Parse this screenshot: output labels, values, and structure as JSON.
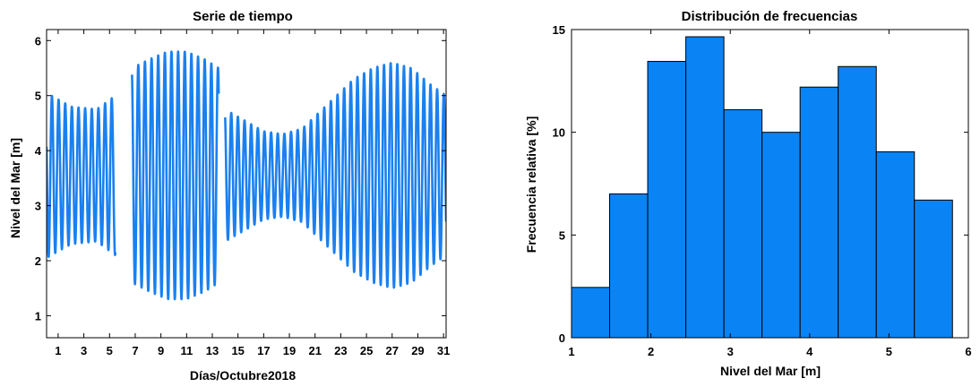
{
  "chart_data": [
    {
      "type": "line",
      "title": "Serie de tiempo",
      "xlabel": "Días/Octubre2018",
      "ylabel": "Nivel del Mar [m]",
      "xlim": [
        0.1,
        31.2
      ],
      "ylim": [
        0.6,
        6.2
      ],
      "xticks": [
        1,
        3,
        5,
        7,
        9,
        11,
        13,
        15,
        17,
        19,
        21,
        23,
        25,
        27,
        29,
        31
      ],
      "xtick_labels": [
        "1",
        "3",
        "5",
        "7",
        "9",
        "11",
        "13",
        "15",
        "17",
        "19",
        "21",
        "23",
        "25",
        "27",
        "29",
        "31"
      ],
      "yticks": [
        1,
        2,
        3,
        4,
        5,
        6
      ],
      "ytick_labels": [
        "1",
        "2",
        "3",
        "4",
        "5",
        "6"
      ],
      "tide": {
        "mean_level": 3.55,
        "period_days": 0.517,
        "segments": [
          [
            0.1,
            5.45
          ],
          [
            6.75,
            13.5
          ],
          [
            14.0,
            31.2
          ]
        ],
        "envelope_days": [
          0.1,
          2.0,
          4.0,
          5.45,
          6.75,
          8.0,
          9.5,
          11.0,
          12.5,
          13.5,
          14.0,
          15.5,
          17.0,
          18.5,
          20.0,
          22.0,
          24.0,
          25.5,
          27.0,
          28.5,
          30.0,
          31.2
        ],
        "envelope_amplitude": [
          1.5,
          1.25,
          1.2,
          1.45,
          1.95,
          2.1,
          2.25,
          2.25,
          2.1,
          1.95,
          1.2,
          1.0,
          0.8,
          0.75,
          0.85,
          1.3,
          1.75,
          1.95,
          2.05,
          1.95,
          1.65,
          1.45
        ]
      },
      "series": [
        {
          "color": "#1a80f0"
        }
      ],
      "grid": false
    },
    {
      "type": "bar",
      "title": "Distribución de frecuencias",
      "xlabel": "Nivel del Mar [m]",
      "ylabel": "Frecuencia relativa [%]",
      "xlim": [
        1,
        6
      ],
      "ylim": [
        0,
        15
      ],
      "xticks": [
        1,
        2,
        3,
        4,
        5,
        6
      ],
      "xtick_labels": [
        "1",
        "2",
        "3",
        "4",
        "5",
        "6"
      ],
      "yticks": [
        0,
        5,
        10,
        15
      ],
      "ytick_labels": [
        "0",
        "5",
        "10",
        "15"
      ],
      "bin_edges": [
        1.0,
        1.48,
        1.96,
        2.44,
        2.92,
        3.4,
        3.88,
        4.36,
        4.84,
        5.32,
        5.8
      ],
      "values": [
        2.45,
        7.0,
        13.45,
        14.65,
        11.1,
        10.0,
        12.2,
        13.2,
        9.05,
        6.7
      ],
      "bar_color": "#0a84f5",
      "edge_color": "#000000",
      "grid": false
    }
  ]
}
